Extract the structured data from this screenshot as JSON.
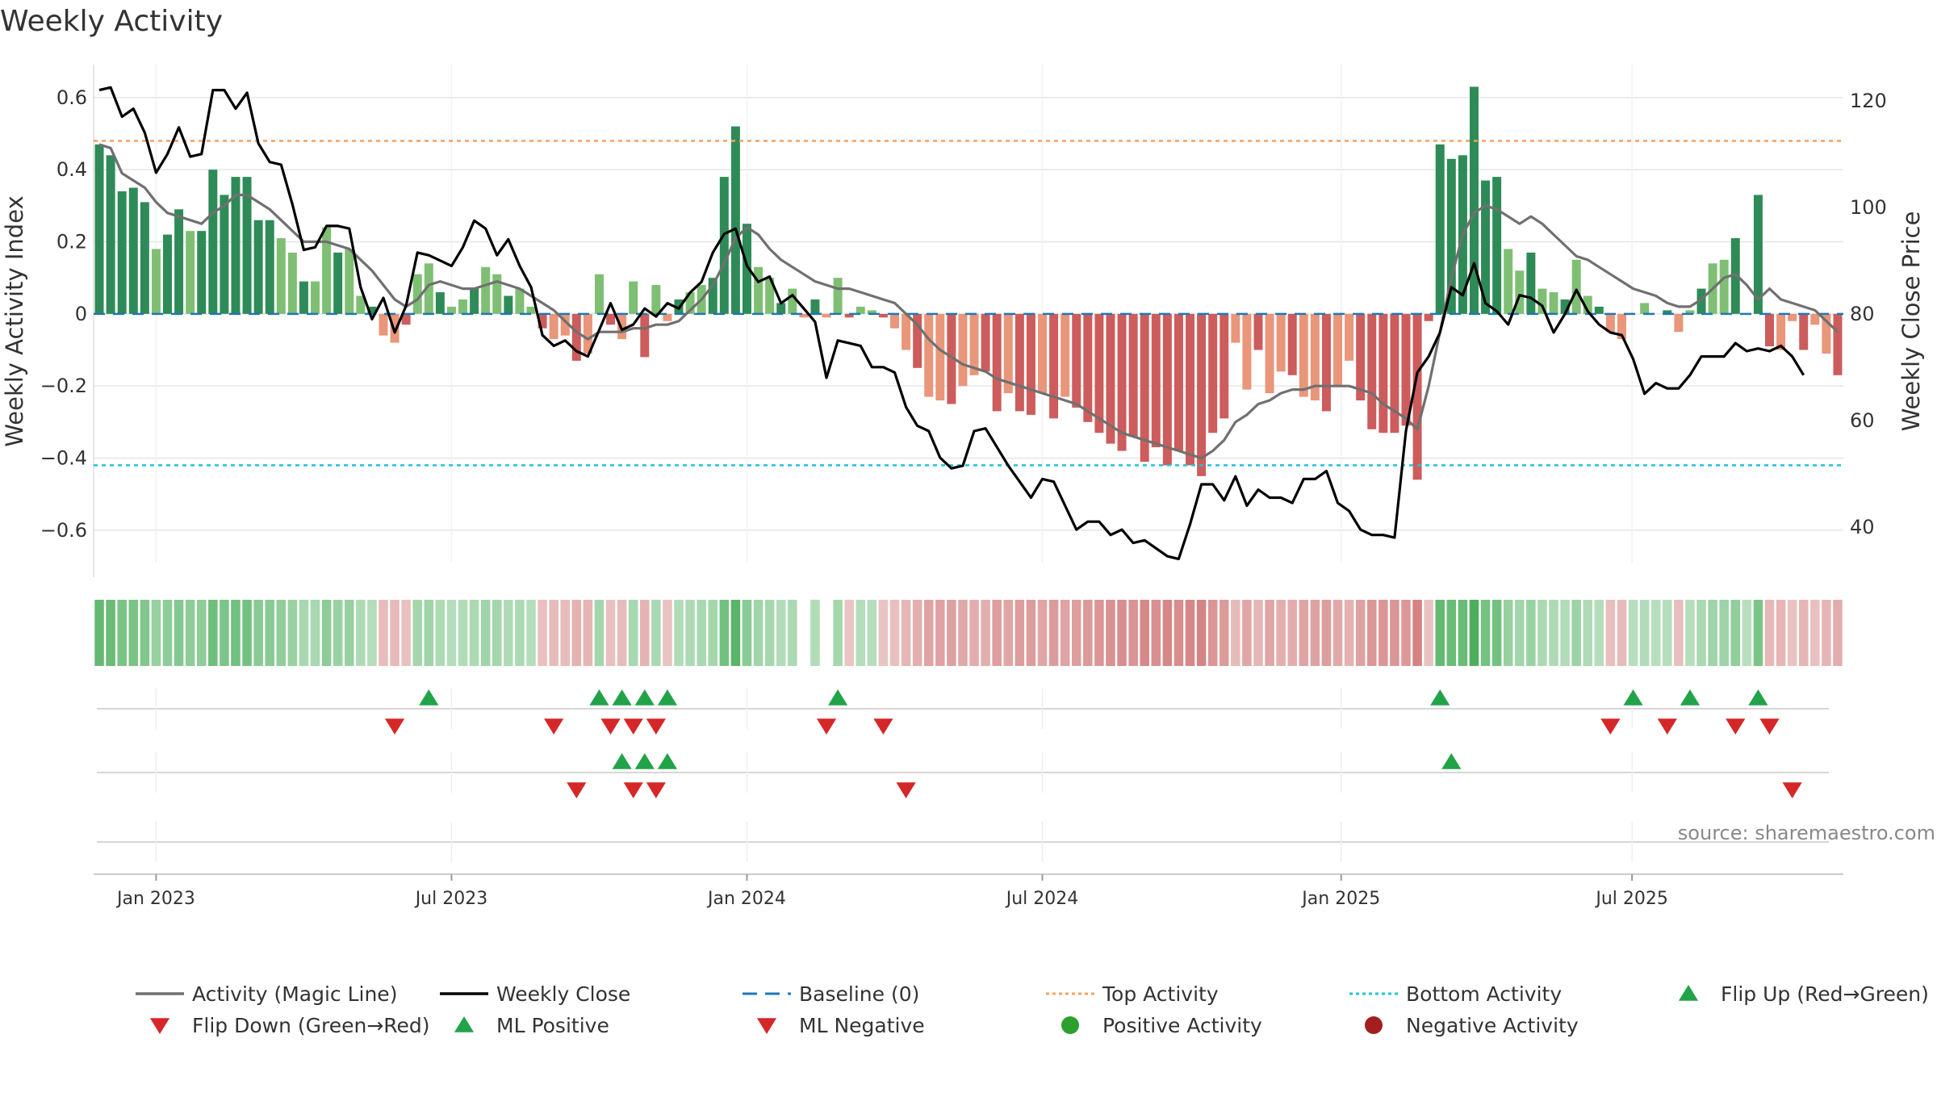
{
  "chart_data": {
    "type": "bar",
    "title": "Weekly Activity",
    "ylabel": "Weekly Activity Index",
    "y2label": "Weekly Close Price",
    "source": "source: sharemaestro.com",
    "ylim": [
      -0.69,
      0.64
    ],
    "y2lim": [
      33.3,
      123.3
    ],
    "yticks": [
      0.6,
      0.4,
      0.2,
      0,
      -0.2,
      -0.4,
      -0.6
    ],
    "ytick_labels": [
      "0.6",
      "0.4",
      "0.2",
      "0",
      "−0.2",
      "−0.4",
      "−0.6"
    ],
    "y2ticks": [
      120,
      100,
      80,
      60,
      40
    ],
    "y2tick_labels": [
      "120",
      "100",
      "80",
      "60",
      "40"
    ],
    "x_start": "2022-11-28",
    "xticks": [
      {
        "week": 5,
        "label": "Jan 2023"
      },
      {
        "week": 31,
        "label": "Jul 2023"
      },
      {
        "week": 57,
        "label": "Jan 2024"
      },
      {
        "week": 83,
        "label": "Jul 2024"
      },
      {
        "week": 109.3,
        "label": "Jan 2025"
      },
      {
        "week": 134.9,
        "label": "Jul 2025"
      }
    ],
    "top_activity": 0.48,
    "bottom_activity": -0.42,
    "activity": [
      0.47,
      0.44,
      0.34,
      0.35,
      0.31,
      0.18,
      0.22,
      0.29,
      0.23,
      0.23,
      0.4,
      0.33,
      0.38,
      0.38,
      0.26,
      0.26,
      0.21,
      0.17,
      0.09,
      0.09,
      0.24,
      0.17,
      0.18,
      0.05,
      0.02,
      -0.06,
      -0.08,
      -0.03,
      0.11,
      0.14,
      0.06,
      0.02,
      0.04,
      0.07,
      0.13,
      0.11,
      0.05,
      0.07,
      0.02,
      -0.04,
      -0.07,
      -0.06,
      -0.13,
      -0.11,
      0.11,
      -0.03,
      -0.07,
      0.09,
      -0.12,
      0.08,
      -0.02,
      0.04,
      0.06,
      0.08,
      0.1,
      0.38,
      0.52,
      0.25,
      0.13,
      0.1,
      0.03,
      0.07,
      -0.01,
      0.04,
      -0.01,
      0.1,
      -0.01,
      0.02,
      0.01,
      -0.01,
      -0.04,
      -0.1,
      -0.15,
      -0.23,
      -0.24,
      -0.25,
      -0.2,
      -0.17,
      -0.16,
      -0.27,
      -0.22,
      -0.27,
      -0.28,
      -0.22,
      -0.29,
      -0.23,
      -0.26,
      -0.3,
      -0.33,
      -0.36,
      -0.38,
      -0.34,
      -0.41,
      -0.37,
      -0.42,
      -0.38,
      -0.42,
      -0.45,
      -0.33,
      -0.29,
      -0.08,
      -0.21,
      -0.1,
      -0.22,
      -0.16,
      -0.17,
      -0.23,
      -0.24,
      -0.27,
      -0.2,
      -0.13,
      -0.24,
      -0.32,
      -0.33,
      -0.33,
      -0.31,
      -0.46,
      -0.02,
      0.47,
      0.43,
      0.44,
      0.63,
      0.37,
      0.38,
      0.18,
      0.12,
      0.17,
      0.07,
      0.06,
      0.04,
      0.15,
      0.05,
      0.02,
      -0.05,
      -0.07,
      0.0,
      0.03,
      0.0,
      0.01,
      -0.05,
      0.01,
      0.07,
      0.14,
      0.15,
      0.21,
      0.0,
      0.33,
      -0.09,
      -0.1,
      -0.02,
      -0.1,
      -0.03,
      -0.11,
      -0.17
    ],
    "magic_line": [
      0.47,
      0.46,
      0.39,
      0.37,
      0.35,
      0.31,
      0.28,
      0.27,
      0.26,
      0.25,
      0.28,
      0.3,
      0.33,
      0.33,
      0.31,
      0.29,
      0.26,
      0.23,
      0.2,
      0.2,
      0.2,
      0.19,
      0.18,
      0.15,
      0.12,
      0.08,
      0.04,
      0.02,
      0.04,
      0.08,
      0.09,
      0.08,
      0.07,
      0.07,
      0.08,
      0.09,
      0.08,
      0.07,
      0.05,
      0.03,
      0.01,
      -0.02,
      -0.05,
      -0.07,
      -0.05,
      -0.05,
      -0.05,
      -0.04,
      -0.04,
      -0.03,
      -0.03,
      -0.02,
      0.01,
      0.04,
      0.08,
      0.14,
      0.21,
      0.24,
      0.22,
      0.18,
      0.15,
      0.13,
      0.11,
      0.09,
      0.08,
      0.07,
      0.07,
      0.06,
      0.05,
      0.04,
      0.03,
      0.0,
      -0.03,
      -0.07,
      -0.1,
      -0.12,
      -0.14,
      -0.15,
      -0.16,
      -0.18,
      -0.19,
      -0.2,
      -0.21,
      -0.22,
      -0.23,
      -0.24,
      -0.25,
      -0.27,
      -0.29,
      -0.31,
      -0.33,
      -0.34,
      -0.35,
      -0.36,
      -0.37,
      -0.38,
      -0.39,
      -0.4,
      -0.38,
      -0.35,
      -0.3,
      -0.28,
      -0.25,
      -0.24,
      -0.22,
      -0.21,
      -0.21,
      -0.2,
      -0.2,
      -0.2,
      -0.2,
      -0.21,
      -0.22,
      -0.25,
      -0.27,
      -0.29,
      -0.32,
      -0.2,
      -0.05,
      0.1,
      0.22,
      0.28,
      0.3,
      0.29,
      0.27,
      0.25,
      0.27,
      0.25,
      0.22,
      0.19,
      0.16,
      0.15,
      0.13,
      0.11,
      0.09,
      0.07,
      0.06,
      0.05,
      0.03,
      0.02,
      0.02,
      0.04,
      0.07,
      0.1,
      0.11,
      0.08,
      0.04,
      0.07,
      0.04,
      0.03,
      0.02,
      0.01,
      -0.02,
      -0.05
    ],
    "weekly_close": [
      122,
      122.5,
      117,
      118.5,
      114,
      106.5,
      110,
      115,
      109.5,
      110,
      122,
      122,
      118.5,
      121.5,
      112,
      108.5,
      108,
      100.5,
      92,
      92.5,
      96.5,
      96.5,
      96,
      85,
      79,
      83,
      76.5,
      81.5,
      91.5,
      91,
      90,
      89,
      92.5,
      97.5,
      96,
      91,
      94,
      89,
      85,
      76,
      74,
      75,
      73,
      72,
      77,
      82,
      77,
      78,
      81,
      79.5,
      82,
      81,
      84,
      86,
      91.5,
      95,
      96,
      89,
      86,
      87,
      82,
      83.5,
      81,
      78.5,
      68,
      75,
      74.5,
      74,
      70,
      70,
      69,
      62.5,
      59,
      58,
      53,
      51,
      51.5,
      58,
      58.5,
      55,
      51.5,
      48.5,
      45.5,
      49,
      48.5,
      44,
      39.5,
      41,
      41,
      38.5,
      39.5,
      37,
      37.5,
      36,
      34.5,
      34,
      40.5,
      48,
      48,
      45,
      49.5,
      44,
      47,
      45.5,
      45.5,
      44.5,
      49,
      49,
      50.5,
      44.5,
      43,
      39.5,
      38.5,
      38.5,
      38,
      58,
      69,
      72,
      76.5,
      85,
      83.5,
      89.5,
      82,
      80.5,
      78,
      83.5,
      83,
      81.5,
      76.5,
      80,
      84.5,
      80.5,
      78,
      76.5,
      76,
      71.5,
      65,
      67,
      66,
      66,
      68.5,
      72,
      72,
      72,
      74.5,
      73,
      73.5,
      73,
      74,
      72,
      68.5
    ],
    "strip_opacity": [
      0.86,
      0.83,
      0.74,
      0.75,
      0.7,
      0.58,
      0.63,
      0.69,
      0.63,
      0.63,
      0.8,
      0.73,
      0.78,
      0.78,
      0.66,
      0.66,
      0.61,
      0.57,
      0.49,
      0.49,
      0.64,
      0.57,
      0.58,
      0.45,
      0.42,
      0.46,
      0.48,
      0.43,
      0.51,
      0.54,
      0.46,
      0.42,
      0.44,
      0.47,
      0.53,
      0.51,
      0.45,
      0.47,
      0.42,
      0.44,
      0.47,
      0.46,
      0.53,
      0.51,
      0.51,
      0.43,
      0.47,
      0.49,
      0.52,
      0.48,
      0.42,
      0.44,
      0.46,
      0.48,
      0.5,
      0.78,
      0.92,
      0.65,
      0.53,
      0.5,
      0.43,
      0.47,
      0.0,
      0.44,
      0.0,
      0.5,
      0.41,
      0.42,
      0.41,
      0.41,
      0.44,
      0.5,
      0.55,
      0.63,
      0.64,
      0.65,
      0.6,
      0.57,
      0.56,
      0.67,
      0.62,
      0.67,
      0.68,
      0.62,
      0.69,
      0.63,
      0.66,
      0.7,
      0.73,
      0.76,
      0.78,
      0.74,
      0.81,
      0.77,
      0.82,
      0.78,
      0.82,
      0.85,
      0.73,
      0.69,
      0.48,
      0.61,
      0.5,
      0.62,
      0.56,
      0.57,
      0.63,
      0.64,
      0.67,
      0.6,
      0.53,
      0.64,
      0.72,
      0.73,
      0.73,
      0.71,
      0.86,
      0.42,
      0.87,
      0.83,
      0.84,
      1.0,
      0.77,
      0.78,
      0.58,
      0.52,
      0.57,
      0.47,
      0.46,
      0.44,
      0.55,
      0.45,
      0.42,
      0.45,
      0.47,
      0.4,
      0.43,
      0.4,
      0.41,
      0.45,
      0.41,
      0.47,
      0.54,
      0.55,
      0.61,
      0.4,
      0.73,
      0.49,
      0.5,
      0.42,
      0.5,
      0.43,
      0.51,
      0.57
    ],
    "flip_up": [
      29,
      44,
      46,
      48,
      50,
      65,
      118,
      135,
      140,
      146
    ],
    "flip_down": [
      26,
      40,
      45,
      47,
      49,
      64,
      69,
      133,
      138,
      144,
      147
    ],
    "ml_positive": [
      46,
      48,
      50,
      119
    ],
    "ml_negative": [
      42,
      47,
      49,
      71,
      149
    ],
    "legend": [
      {
        "label": "Activity (Magic Line)",
        "kind": "line",
        "color": "#707070"
      },
      {
        "label": "Weekly Close",
        "kind": "line",
        "color": "#000000"
      },
      {
        "label": "Baseline (0)",
        "kind": "dash",
        "color": "#1f77b4"
      },
      {
        "label": "Top Activity",
        "kind": "dot",
        "color": "#f4a261"
      },
      {
        "label": "Bottom Activity",
        "kind": "dot",
        "color": "#22c2d6"
      },
      {
        "label": "Flip Up (Red→Green)",
        "kind": "tri-up",
        "color": "#22a34a"
      },
      {
        "label": "Flip Down (Green→Red)",
        "kind": "tri-down",
        "color": "#d62728"
      },
      {
        "label": "ML Positive",
        "kind": "tri-up",
        "color": "#22a34a"
      },
      {
        "label": "ML Negative",
        "kind": "tri-down",
        "color": "#d62728"
      },
      {
        "label": "Positive Activity",
        "kind": "circle",
        "color": "#2ca02c"
      },
      {
        "label": "Negative Activity",
        "kind": "circle",
        "color": "#a31f1f"
      }
    ],
    "colors": {
      "positive_strong": "#2e8b57",
      "positive_light": "#7fbf73",
      "negative_strong": "#cd5c5c",
      "negative_light": "#e9967a",
      "strip_positive": "#4caf5c",
      "strip_negative": "#cd6e6e",
      "grid": "#e6e6e6"
    }
  }
}
